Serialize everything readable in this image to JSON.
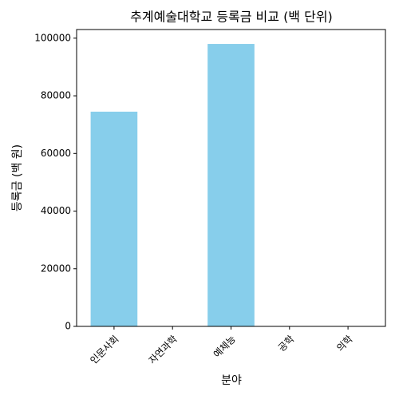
{
  "chart_data": {
    "type": "bar",
    "title": "추계예술대학교 등록금 비교 (백 단위)",
    "x_label": "분야",
    "y_label": "등록금 (백 원)",
    "categories": [
      "인문사회",
      "자연과학",
      "예체능",
      "공학",
      "의학"
    ],
    "values": [
      74500,
      0,
      98000,
      0,
      0
    ],
    "color": "#87ceeb",
    "ylim": [
      0,
      103000
    ],
    "yticks": [
      0,
      20000,
      40000,
      60000,
      80000,
      100000
    ],
    "grid": false
  }
}
